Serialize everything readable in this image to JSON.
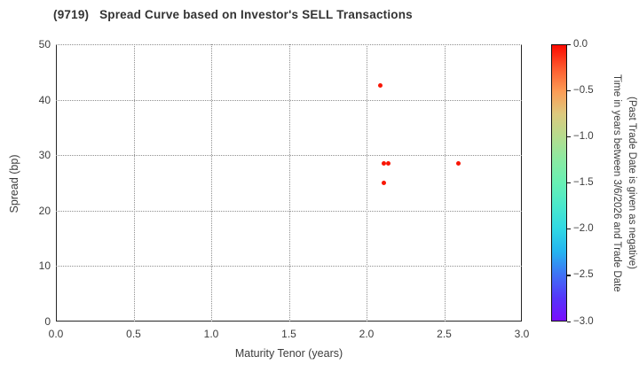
{
  "chart_data": {
    "type": "scatter",
    "title": "(9719)   Spread Curve based on Investor's SELL Transactions",
    "xlabel": "Maturity Tenor (years)",
    "ylabel": "Spread (bp)",
    "xlim": [
      0.0,
      3.0
    ],
    "ylim": [
      0,
      50
    ],
    "grid": true,
    "legend_position": "none",
    "xticks": {
      "values": [
        0,
        0.5,
        1.0,
        1.5,
        2.0,
        2.5,
        3.0
      ],
      "labels": [
        "0.0",
        "0.5",
        "1.0",
        "1.5",
        "2.0",
        "2.5",
        "3.0"
      ]
    },
    "yticks": {
      "values": [
        0,
        10,
        20,
        30,
        40,
        50
      ],
      "labels": [
        "0",
        "10",
        "20",
        "30",
        "40",
        "50"
      ]
    },
    "points": [
      {
        "x": 2.09,
        "y": 42.5,
        "c": 0.0
      },
      {
        "x": 2.11,
        "y": 28.5,
        "c": 0.0
      },
      {
        "x": 2.14,
        "y": 28.5,
        "c": 0.0
      },
      {
        "x": 2.11,
        "y": 25.0,
        "c": 0.0
      },
      {
        "x": 2.59,
        "y": 28.5,
        "c": 0.0
      }
    ],
    "point_color": "#f91605",
    "colorbar": {
      "label_line1": "Time in years between 3/6/2026 and Trade Date",
      "label_line2": "(Past Trade Date is given as negative)",
      "range": [
        0.0,
        -3.0
      ],
      "ticks": {
        "values": [
          0,
          -0.5,
          -1.0,
          -1.5,
          -2.0,
          -2.5,
          -3.0
        ],
        "labels": [
          "0.0",
          "−0.5",
          "−1.0",
          "−1.5",
          "−2.0",
          "−2.5",
          "−3.0"
        ]
      },
      "colormap": "rainbow-reversed",
      "gradient_stops": [
        "#fc0a00",
        "#fd5a2e",
        "#fc9b55",
        "#ddc97e",
        "#b5dc8e",
        "#8aeaa2",
        "#68f0b4",
        "#4ae8cc",
        "#30d8e4",
        "#24b4f0",
        "#3f72f5",
        "#5536fa",
        "#7a0dfe"
      ]
    }
  }
}
